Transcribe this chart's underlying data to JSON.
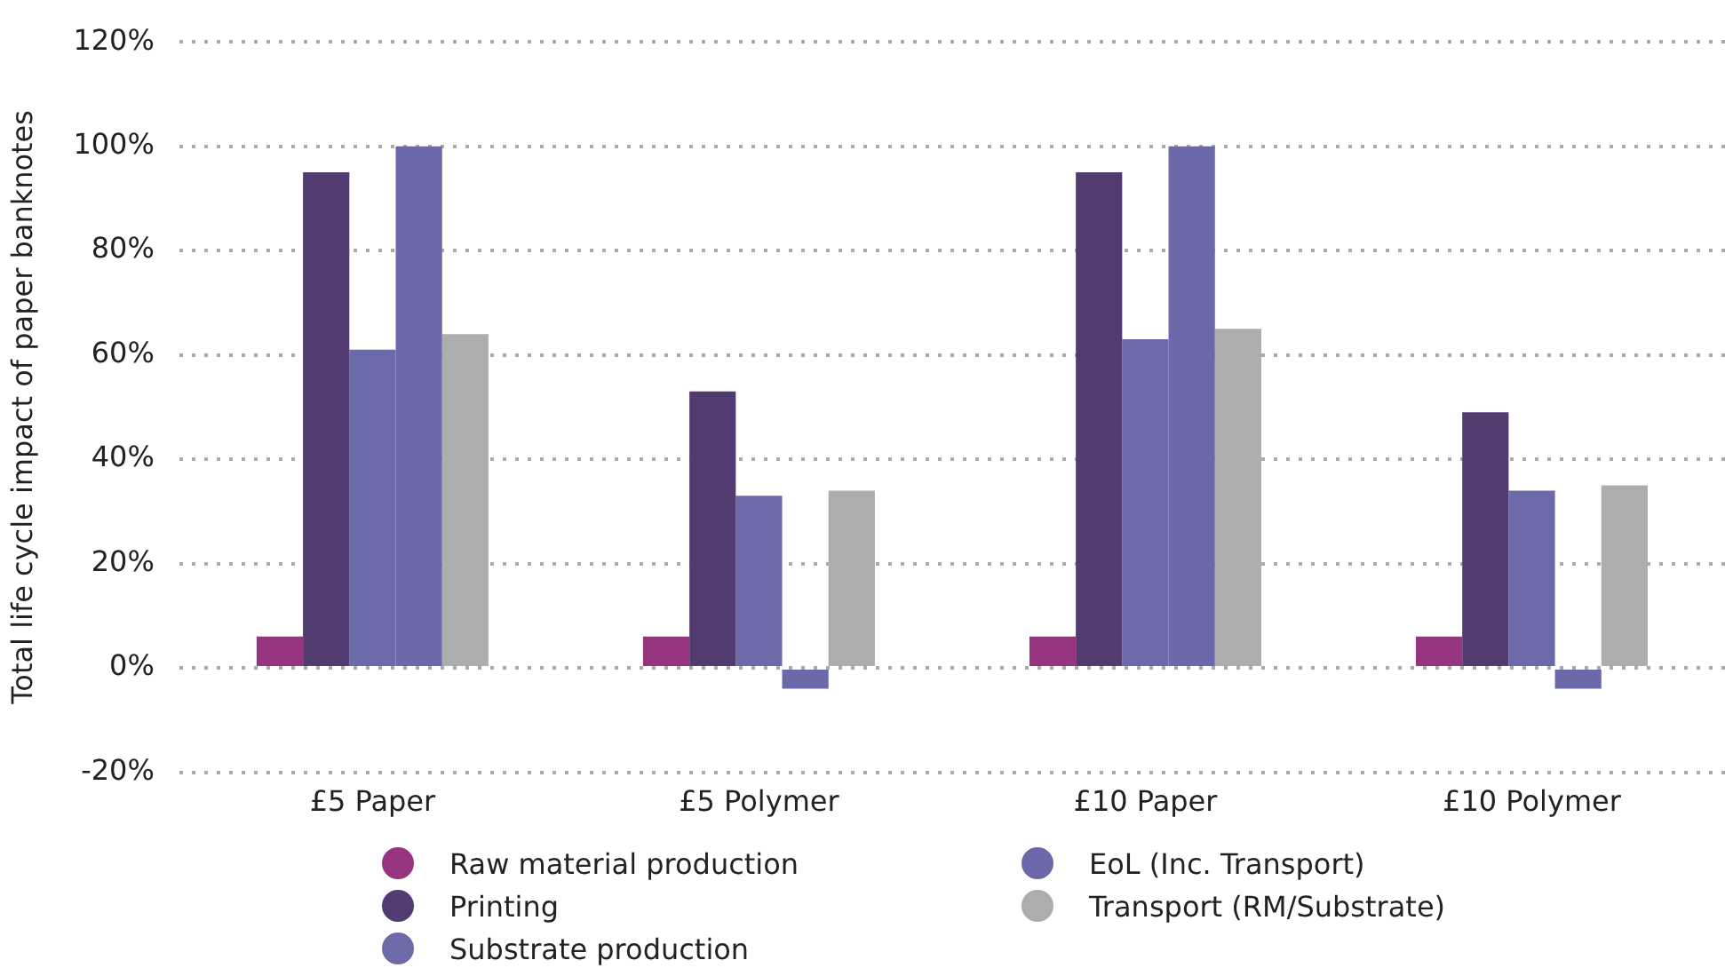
{
  "chart_data": {
    "type": "bar",
    "ylabel": "Total life cycle impact of paper banknotes",
    "categories": [
      "£5 Paper",
      "£5 Polymer",
      "£10 Paper",
      "£10 Polymer"
    ],
    "series": [
      {
        "name": "Raw material production",
        "color": "#97347f",
        "values": [
          6,
          6,
          6,
          6
        ]
      },
      {
        "name": "Printing",
        "color": "#523b71",
        "values": [
          95,
          53,
          95,
          49
        ]
      },
      {
        "name": "Substrate production",
        "color": "#6c6aa8",
        "values": [
          61,
          33,
          63,
          34
        ]
      },
      {
        "name": "EoL (Inc. Transport)",
        "color": "#6b69aa",
        "values": [
          100,
          -4,
          100,
          -4
        ]
      },
      {
        "name": "Transport (RM/Substrate)",
        "color": "#acadad",
        "values": [
          64,
          34,
          65,
          35
        ]
      }
    ],
    "ylim": [
      -20,
      120
    ],
    "yticks": [
      {
        "value": -20,
        "label": "-20%"
      },
      {
        "value": 0,
        "label": "0%"
      },
      {
        "value": 20,
        "label": "20%"
      },
      {
        "value": 40,
        "label": "40%"
      },
      {
        "value": 60,
        "label": "60%"
      },
      {
        "value": 80,
        "label": "80%"
      },
      {
        "value": 100,
        "label": "100%"
      },
      {
        "value": 120,
        "label": "120%"
      }
    ],
    "grid": "y",
    "legend": "bottom"
  }
}
